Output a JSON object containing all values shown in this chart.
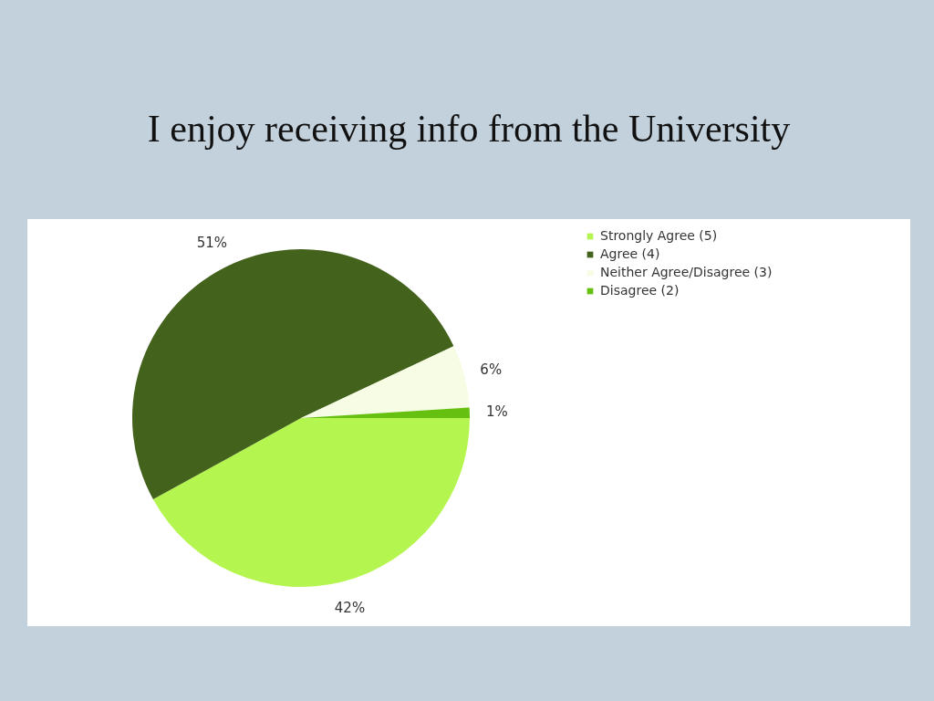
{
  "chart_data": {
    "type": "pie",
    "title": "I enjoy receiving info from the University",
    "categories": [
      "Strongly Agree (5)",
      "Agree (4)",
      "Neither Agree/Disagree (3)",
      "Disagree (2)"
    ],
    "values": [
      42,
      51,
      6,
      1
    ],
    "colors": [
      "#b5f54f",
      "#43621b",
      "#f7fce4",
      "#66c010"
    ],
    "value_labels": [
      "42%",
      "51%",
      "6%",
      "1%"
    ],
    "legend": "top right"
  }
}
